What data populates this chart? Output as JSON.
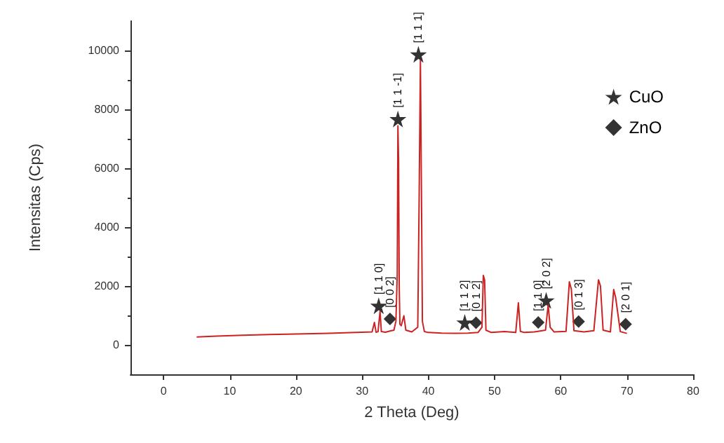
{
  "chart_data": {
    "type": "line",
    "xlabel": "2 Theta (Deg)",
    "ylabel": "Intensitas (Cps)",
    "xlim": [
      -5,
      80
    ],
    "xticks": [
      0,
      10,
      20,
      30,
      40,
      50,
      60,
      70,
      80
    ],
    "ylim": [
      -1000,
      11000
    ],
    "yticks": [
      0,
      2000,
      4000,
      6000,
      8000,
      10000
    ],
    "grid": false,
    "legend": "top right",
    "marker": "none",
    "series": [
      {
        "color": "#cc2222",
        "x": [
          5,
          8,
          12,
          16,
          20,
          25,
          29,
          31.5,
          31.85,
          32.1,
          32.4,
          32.7,
          32.9,
          33.5,
          34.2,
          34.8,
          35.1,
          35.3,
          35.4,
          35.5,
          35.6,
          35.7,
          35.9,
          36.3,
          36.6,
          37.5,
          38.4,
          38.6,
          38.8,
          38.95,
          39.1,
          39.4,
          40,
          42,
          44,
          46,
          47.5,
          48.1,
          48.3,
          48.5,
          48.7,
          49.5,
          51.5,
          53.2,
          53.6,
          53.9,
          54.5,
          56,
          57.7,
          58.1,
          58.4,
          59,
          60.8,
          61.3,
          61.6,
          62,
          63.5,
          65,
          65.7,
          66,
          66.4,
          67.5,
          68,
          68.3,
          69,
          70
        ],
        "values": [
          270,
          300,
          330,
          350,
          370,
          390,
          420,
          440,
          760,
          430,
          450,
          1140,
          450,
          430,
          470,
          500,
          800,
          2400,
          7440,
          6290,
          2000,
          700,
          650,
          990,
          500,
          440,
          600,
          4800,
          9660,
          5400,
          800,
          450,
          420,
          400,
          390,
          400,
          420,
          600,
          2360,
          2200,
          500,
          420,
          450,
          420,
          1430,
          460,
          420,
          440,
          500,
          1360,
          600,
          440,
          460,
          2140,
          1900,
          480,
          440,
          480,
          2210,
          2000,
          500,
          440,
          1880,
          1600,
          450,
          390
        ]
      },
      {
        "type": "scatter",
        "name": "CuO",
        "marker": "star",
        "color": "#000000",
        "x": [
          32.5,
          35.4,
          38.5,
          45.5,
          57.8
        ],
        "values": [
          1330,
          7670,
          9870,
          760,
          1510
        ]
      },
      {
        "type": "scatter",
        "name": "ZnO",
        "marker": "diamond",
        "color": "#000000",
        "x": [
          34.2,
          47.2,
          56.6,
          62.7,
          69.8
        ],
        "values": [
          880,
          750,
          760,
          790,
          700
        ]
      }
    ],
    "annotations": [
      {
        "text": "[1 1 0]",
        "x": 32.5,
        "y": 1330
      },
      {
        "text": "[0 0 2]",
        "x": 34.2,
        "y": 880
      },
      {
        "text": "[1 1 -1]",
        "x": 35.4,
        "y": 7670
      },
      {
        "text": "[1 1 1]",
        "x": 38.5,
        "y": 9870
      },
      {
        "text": "[1 1 2]",
        "x": 45.5,
        "y": 760
      },
      {
        "text": "[0 1 2]",
        "x": 47.2,
        "y": 750
      },
      {
        "text": "[1 1 0]",
        "x": 56.6,
        "y": 760
      },
      {
        "text": "[2 0 2]",
        "x": 57.8,
        "y": 1510
      },
      {
        "text": "[0 1 3]",
        "x": 62.7,
        "y": 790
      },
      {
        "text": "[2 0 1]",
        "x": 69.8,
        "y": 700
      }
    ]
  }
}
